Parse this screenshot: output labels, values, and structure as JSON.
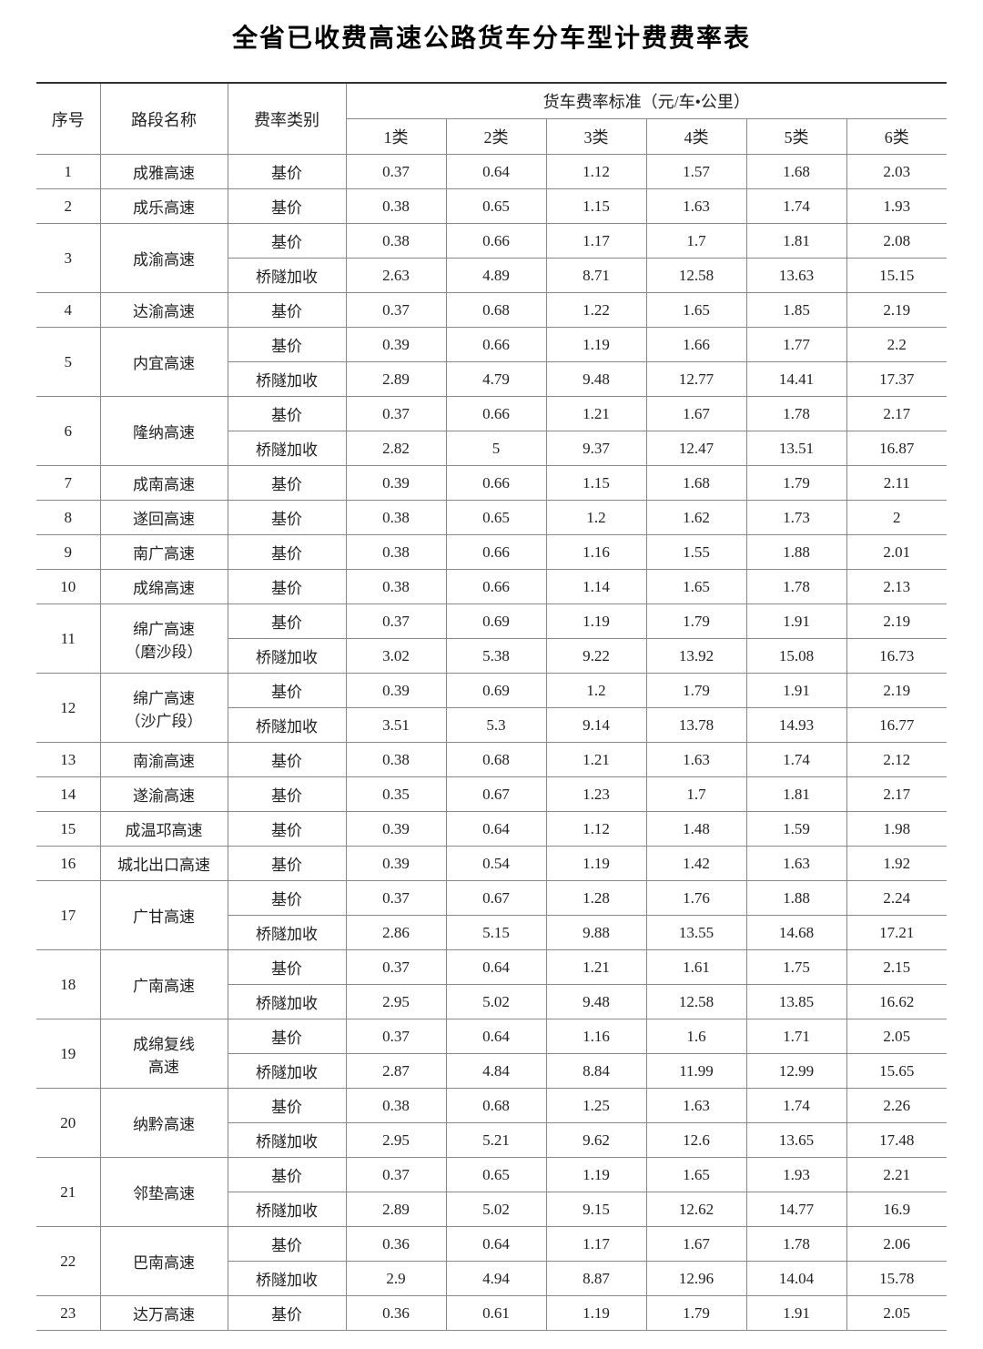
{
  "title": "全省已收费高速公路货车分车型计费费率表",
  "table": {
    "headers": {
      "seq": "序号",
      "roadName": "路段名称",
      "rateType": "费率类别",
      "rateStandard": "货车费率标准（元/车•公里）",
      "classes": [
        "1类",
        "2类",
        "3类",
        "4类",
        "5类",
        "6类"
      ]
    },
    "rows": [
      {
        "seq": "1",
        "name": "成雅高速",
        "rates": [
          [
            "基价",
            "0.37",
            "0.64",
            "1.12",
            "1.57",
            "1.68",
            "2.03"
          ]
        ]
      },
      {
        "seq": "2",
        "name": "成乐高速",
        "rates": [
          [
            "基价",
            "0.38",
            "0.65",
            "1.15",
            "1.63",
            "1.74",
            "1.93"
          ]
        ]
      },
      {
        "seq": "3",
        "name": "成渝高速",
        "rates": [
          [
            "基价",
            "0.38",
            "0.66",
            "1.17",
            "1.7",
            "1.81",
            "2.08"
          ],
          [
            "桥隧加收",
            "2.63",
            "4.89",
            "8.71",
            "12.58",
            "13.63",
            "15.15"
          ]
        ]
      },
      {
        "seq": "4",
        "name": "达渝高速",
        "rates": [
          [
            "基价",
            "0.37",
            "0.68",
            "1.22",
            "1.65",
            "1.85",
            "2.19"
          ]
        ]
      },
      {
        "seq": "5",
        "name": "内宜高速",
        "rates": [
          [
            "基价",
            "0.39",
            "0.66",
            "1.19",
            "1.66",
            "1.77",
            "2.2"
          ],
          [
            "桥隧加收",
            "2.89",
            "4.79",
            "9.48",
            "12.77",
            "14.41",
            "17.37"
          ]
        ]
      },
      {
        "seq": "6",
        "name": "隆纳高速",
        "rates": [
          [
            "基价",
            "0.37",
            "0.66",
            "1.21",
            "1.67",
            "1.78",
            "2.17"
          ],
          [
            "桥隧加收",
            "2.82",
            "5",
            "9.37",
            "12.47",
            "13.51",
            "16.87"
          ]
        ]
      },
      {
        "seq": "7",
        "name": "成南高速",
        "rates": [
          [
            "基价",
            "0.39",
            "0.66",
            "1.15",
            "1.68",
            "1.79",
            "2.11"
          ]
        ]
      },
      {
        "seq": "8",
        "name": "遂回高速",
        "rates": [
          [
            "基价",
            "0.38",
            "0.65",
            "1.2",
            "1.62",
            "1.73",
            "2"
          ]
        ]
      },
      {
        "seq": "9",
        "name": "南广高速",
        "rates": [
          [
            "基价",
            "0.38",
            "0.66",
            "1.16",
            "1.55",
            "1.88",
            "2.01"
          ]
        ]
      },
      {
        "seq": "10",
        "name": "成绵高速",
        "rates": [
          [
            "基价",
            "0.38",
            "0.66",
            "1.14",
            "1.65",
            "1.78",
            "2.13"
          ]
        ]
      },
      {
        "seq": "11",
        "name": "绵广高速\n（磨沙段）",
        "rates": [
          [
            "基价",
            "0.37",
            "0.69",
            "1.19",
            "1.79",
            "1.91",
            "2.19"
          ],
          [
            "桥隧加收",
            "3.02",
            "5.38",
            "9.22",
            "13.92",
            "15.08",
            "16.73"
          ]
        ]
      },
      {
        "seq": "12",
        "name": "绵广高速\n（沙广段）",
        "rates": [
          [
            "基价",
            "0.39",
            "0.69",
            "1.2",
            "1.79",
            "1.91",
            "2.19"
          ],
          [
            "桥隧加收",
            "3.51",
            "5.3",
            "9.14",
            "13.78",
            "14.93",
            "16.77"
          ]
        ]
      },
      {
        "seq": "13",
        "name": "南渝高速",
        "rates": [
          [
            "基价",
            "0.38",
            "0.68",
            "1.21",
            "1.63",
            "1.74",
            "2.12"
          ]
        ]
      },
      {
        "seq": "14",
        "name": "遂渝高速",
        "rates": [
          [
            "基价",
            "0.35",
            "0.67",
            "1.23",
            "1.7",
            "1.81",
            "2.17"
          ]
        ]
      },
      {
        "seq": "15",
        "name": "成温邛高速",
        "rates": [
          [
            "基价",
            "0.39",
            "0.64",
            "1.12",
            "1.48",
            "1.59",
            "1.98"
          ]
        ]
      },
      {
        "seq": "16",
        "name": "城北出口高速",
        "rates": [
          [
            "基价",
            "0.39",
            "0.54",
            "1.19",
            "1.42",
            "1.63",
            "1.92"
          ]
        ]
      },
      {
        "seq": "17",
        "name": "广甘高速",
        "rates": [
          [
            "基价",
            "0.37",
            "0.67",
            "1.28",
            "1.76",
            "1.88",
            "2.24"
          ],
          [
            "桥隧加收",
            "2.86",
            "5.15",
            "9.88",
            "13.55",
            "14.68",
            "17.21"
          ]
        ]
      },
      {
        "seq": "18",
        "name": "广南高速",
        "rates": [
          [
            "基价",
            "0.37",
            "0.64",
            "1.21",
            "1.61",
            "1.75",
            "2.15"
          ],
          [
            "桥隧加收",
            "2.95",
            "5.02",
            "9.48",
            "12.58",
            "13.85",
            "16.62"
          ]
        ]
      },
      {
        "seq": "19",
        "name": "成绵复线\n高速",
        "rates": [
          [
            "基价",
            "0.37",
            "0.64",
            "1.16",
            "1.6",
            "1.71",
            "2.05"
          ],
          [
            "桥隧加收",
            "2.87",
            "4.84",
            "8.84",
            "11.99",
            "12.99",
            "15.65"
          ]
        ]
      },
      {
        "seq": "20",
        "name": "纳黔高速",
        "rates": [
          [
            "基价",
            "0.38",
            "0.68",
            "1.25",
            "1.63",
            "1.74",
            "2.26"
          ],
          [
            "桥隧加收",
            "2.95",
            "5.21",
            "9.62",
            "12.6",
            "13.65",
            "17.48"
          ]
        ]
      },
      {
        "seq": "21",
        "name": "邻垫高速",
        "rates": [
          [
            "基价",
            "0.37",
            "0.65",
            "1.19",
            "1.65",
            "1.93",
            "2.21"
          ],
          [
            "桥隧加收",
            "2.89",
            "5.02",
            "9.15",
            "12.62",
            "14.77",
            "16.9"
          ]
        ]
      },
      {
        "seq": "22",
        "name": "巴南高速",
        "rates": [
          [
            "基价",
            "0.36",
            "0.64",
            "1.17",
            "1.67",
            "1.78",
            "2.06"
          ],
          [
            "桥隧加收",
            "2.9",
            "4.94",
            "8.87",
            "12.96",
            "14.04",
            "15.78"
          ]
        ]
      },
      {
        "seq": "23",
        "name": "达万高速",
        "rates": [
          [
            "基价",
            "0.36",
            "0.61",
            "1.19",
            "1.79",
            "1.91",
            "2.05"
          ]
        ]
      }
    ]
  },
  "styling": {
    "background_color": "#ffffff",
    "text_color": "#222222",
    "border_color": "#888888",
    "top_border_color": "#333333",
    "title_fontsize": 28,
    "cell_fontsize": 17,
    "header_fontsize": 18,
    "font_family": "SimSun"
  }
}
